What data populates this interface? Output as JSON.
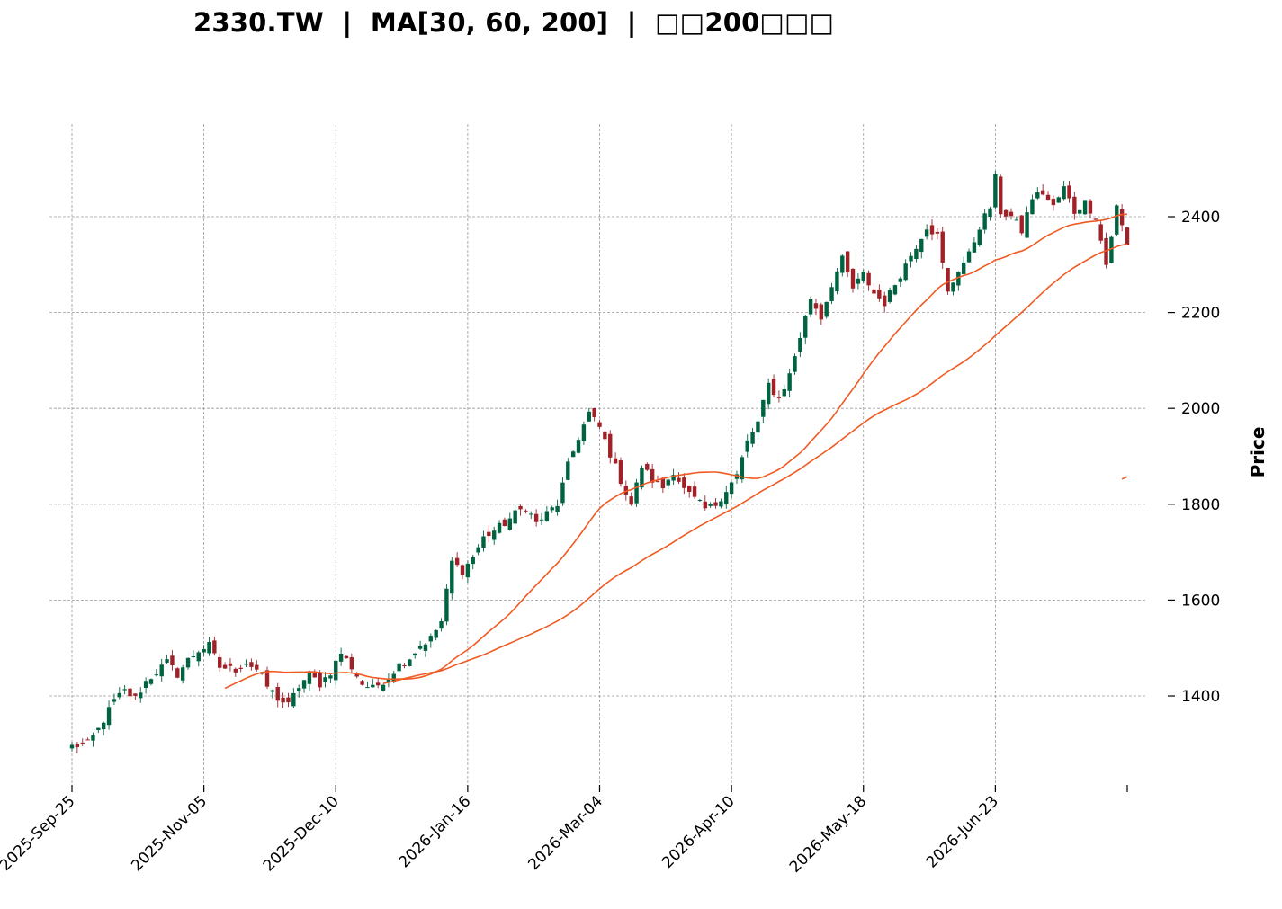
{
  "chart_data": {
    "type": "candlestick",
    "title": "2330.TW  |  MA[30, 60, 200]  |  □□200□□□",
    "ylabel": "Price",
    "ylim": [
      1220,
      2560
    ],
    "yticks": [
      1400,
      1600,
      1800,
      2000,
      2200,
      2400
    ],
    "grid": true,
    "x_tick_labels": [
      "2025-Sep-25",
      "2025-Nov-05",
      "2025-Dec-10",
      "2026-Jan-16",
      "2026-Mar-04",
      "2026-Apr-10",
      "2026-May-18",
      "2026-Jun-23"
    ],
    "x_tick_index": [
      0,
      25,
      50,
      75,
      100,
      125,
      150,
      175
    ],
    "n_bars": 201,
    "up_color": "#006340",
    "down_color": "#a02128",
    "ma_color": "#f05a22",
    "close_anchors": [
      [
        0,
        1295
      ],
      [
        3,
        1300
      ],
      [
        5,
        1330
      ],
      [
        8,
        1390
      ],
      [
        10,
        1410
      ],
      [
        12,
        1395
      ],
      [
        14,
        1430
      ],
      [
        16,
        1450
      ],
      [
        18,
        1470
      ],
      [
        20,
        1445
      ],
      [
        22,
        1475
      ],
      [
        24,
        1495
      ],
      [
        26,
        1505
      ],
      [
        28,
        1460
      ],
      [
        31,
        1455
      ],
      [
        33,
        1470
      ],
      [
        35,
        1455
      ],
      [
        37,
        1420
      ],
      [
        39,
        1395
      ],
      [
        41,
        1380
      ],
      [
        43,
        1420
      ],
      [
        45,
        1445
      ],
      [
        47,
        1425
      ],
      [
        49,
        1450
      ],
      [
        51,
        1490
      ],
      [
        53,
        1460
      ],
      [
        55,
        1425
      ],
      [
        57,
        1415
      ],
      [
        60,
        1440
      ],
      [
        62,
        1465
      ],
      [
        64,
        1480
      ],
      [
        66,
        1505
      ],
      [
        68,
        1520
      ],
      [
        70,
        1555
      ],
      [
        72,
        1680
      ],
      [
        74,
        1660
      ],
      [
        76,
        1690
      ],
      [
        78,
        1730
      ],
      [
        80,
        1745
      ],
      [
        82,
        1760
      ],
      [
        84,
        1780
      ],
      [
        86,
        1795
      ],
      [
        88,
        1760
      ],
      [
        90,
        1780
      ],
      [
        92,
        1800
      ],
      [
        94,
        1880
      ],
      [
        96,
        1940
      ],
      [
        98,
        1990
      ],
      [
        100,
        1960
      ],
      [
        102,
        1905
      ],
      [
        104,
        1850
      ],
      [
        106,
        1800
      ],
      [
        108,
        1880
      ],
      [
        110,
        1850
      ],
      [
        112,
        1835
      ],
      [
        114,
        1870
      ],
      [
        116,
        1830
      ],
      [
        118,
        1810
      ],
      [
        120,
        1790
      ],
      [
        122,
        1800
      ],
      [
        124,
        1830
      ],
      [
        126,
        1860
      ],
      [
        128,
        1930
      ],
      [
        130,
        1970
      ],
      [
        132,
        2050
      ],
      [
        134,
        2020
      ],
      [
        136,
        2070
      ],
      [
        138,
        2150
      ],
      [
        140,
        2230
      ],
      [
        142,
        2190
      ],
      [
        144,
        2260
      ],
      [
        146,
        2310
      ],
      [
        148,
        2250
      ],
      [
        150,
        2280
      ],
      [
        152,
        2240
      ],
      [
        154,
        2220
      ],
      [
        156,
        2260
      ],
      [
        158,
        2300
      ],
      [
        160,
        2340
      ],
      [
        162,
        2380
      ],
      [
        164,
        2360
      ],
      [
        166,
        2240
      ],
      [
        168,
        2290
      ],
      [
        170,
        2320
      ],
      [
        172,
        2380
      ],
      [
        174,
        2420
      ],
      [
        175,
        2480
      ],
      [
        176,
        2410
      ],
      [
        178,
        2400
      ],
      [
        180,
        2370
      ],
      [
        182,
        2440
      ],
      [
        184,
        2450
      ],
      [
        186,
        2420
      ],
      [
        188,
        2460
      ],
      [
        190,
        2410
      ],
      [
        192,
        2430
      ],
      [
        194,
        2400
      ],
      [
        196,
        2300
      ],
      [
        198,
        2420
      ],
      [
        200,
        2340
      ]
    ],
    "series": [
      {
        "name": "MA30"
      },
      {
        "name": "MA60"
      },
      {
        "name": "MA200"
      }
    ]
  }
}
